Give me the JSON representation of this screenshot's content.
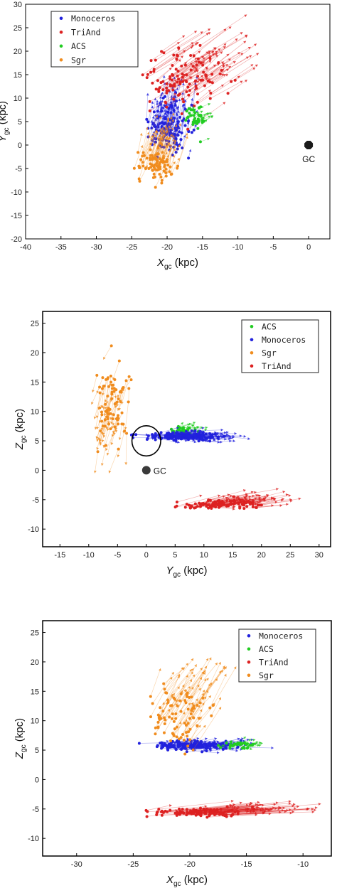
{
  "chart_data": [
    {
      "type": "scatter",
      "xlabel": {
        "main": "X",
        "sub": "gc",
        "unit": " (kpc)"
      },
      "ylabel": {
        "main": "Y",
        "sub": "gc",
        "unit": " (kpc)"
      },
      "xlim": [
        -40,
        3
      ],
      "ylim": [
        -20,
        30
      ],
      "xticks": [
        -40,
        -35,
        -30,
        -25,
        -20,
        -15,
        -10,
        -5,
        0
      ],
      "yticks": [
        -20,
        -15,
        -10,
        -5,
        0,
        5,
        10,
        15,
        20,
        25,
        30
      ],
      "legend_position": "top-left",
      "marker": {
        "label": "GC",
        "x": 0,
        "y": 0
      },
      "series": [
        {
          "name": "Monoceros",
          "color": "#2222dd",
          "center": [
            -19.5,
            3.5
          ],
          "spread": [
            2.5,
            5
          ],
          "count": 140,
          "vector": [
            0.5,
            5
          ],
          "seed": 11
        },
        {
          "name": "TriAnd",
          "color": "#dd2222",
          "center": [
            -18,
            14
          ],
          "spread": [
            4.5,
            5.5
          ],
          "count": 110,
          "vector": [
            5,
            5
          ],
          "seed": 12
        },
        {
          "name": "ACS",
          "color": "#22cc22",
          "center": [
            -16,
            5
          ],
          "spread": [
            1.3,
            3
          ],
          "count": 35,
          "vector": [
            1,
            1
          ],
          "seed": 13
        },
        {
          "name": "Sgr",
          "color": "#f08c1e",
          "center": [
            -21.5,
            -4
          ],
          "spread": [
            2.5,
            3
          ],
          "count": 85,
          "vector": [
            1.5,
            7
          ],
          "seed": 14
        }
      ]
    },
    {
      "type": "scatter",
      "xlabel": {
        "main": "Y",
        "sub": "gc",
        "unit": " (kpc)"
      },
      "ylabel": {
        "main": "Z",
        "sub": "gc",
        "unit": " (kpc)"
      },
      "xlim": [
        -18,
        32
      ],
      "ylim": [
        -13,
        27
      ],
      "xticks": [
        -15,
        -10,
        -5,
        0,
        5,
        10,
        15,
        20,
        25,
        30
      ],
      "yticks": [
        -10,
        -5,
        0,
        5,
        10,
        15,
        20,
        25
      ],
      "legend_position": "top-right",
      "marker": {
        "label": "GC",
        "x": 0,
        "y": 0
      },
      "circle": {
        "x": 0,
        "y": 5,
        "r": 2.5
      },
      "series": [
        {
          "name": "ACS",
          "color": "#22cc22",
          "center": [
            6,
            6.8
          ],
          "spread": [
            2.5,
            0.8
          ],
          "count": 30,
          "vector": [
            2,
            0.5
          ],
          "seed": 21
        },
        {
          "name": "Monoceros",
          "color": "#2222dd",
          "center": [
            6,
            5.8
          ],
          "spread": [
            5.5,
            0.6
          ],
          "count": 150,
          "vector": [
            4,
            0
          ],
          "seed": 22
        },
        {
          "name": "Sgr",
          "color": "#f08c1e",
          "center": [
            -6,
            11
          ],
          "spread": [
            2.5,
            6
          ],
          "count": 80,
          "vector": [
            -1,
            -4
          ],
          "seed": 23
        },
        {
          "name": "TriAnd",
          "color": "#dd2222",
          "center": [
            13,
            -5.8
          ],
          "spread": [
            6,
            0.7
          ],
          "count": 110,
          "vector": [
            6,
            1
          ],
          "seed": 24
        }
      ]
    },
    {
      "type": "scatter",
      "xlabel": {
        "main": "X",
        "sub": "gc",
        "unit": " (kpc)"
      },
      "ylabel": {
        "main": "Z",
        "sub": "gc",
        "unit": " (kpc)"
      },
      "xlim": [
        -33,
        -7.5
      ],
      "ylim": [
        -13,
        27
      ],
      "xticks": [
        -30,
        -25,
        -20,
        -15,
        -10
      ],
      "yticks": [
        -10,
        -5,
        0,
        5,
        10,
        15,
        20,
        25
      ],
      "legend_position": "top-right",
      "series": [
        {
          "name": "Monoceros",
          "color": "#2222dd",
          "center": [
            -20,
            5.8
          ],
          "spread": [
            2.8,
            0.7
          ],
          "count": 150,
          "vector": [
            2,
            0.2
          ],
          "seed": 31
        },
        {
          "name": "ACS",
          "color": "#22cc22",
          "center": [
            -15.5,
            5.8
          ],
          "spread": [
            1.3,
            0.6
          ],
          "count": 30,
          "vector": [
            1,
            0.3
          ],
          "seed": 32
        },
        {
          "name": "TriAnd",
          "color": "#dd2222",
          "center": [
            -19,
            -5.6
          ],
          "spread": [
            3.5,
            0.7
          ],
          "count": 110,
          "vector": [
            6,
            0.8
          ],
          "seed": 33
        },
        {
          "name": "Sgr",
          "color": "#f08c1e",
          "center": [
            -21,
            11
          ],
          "spread": [
            2.2,
            5
          ],
          "count": 85,
          "vector": [
            2,
            6
          ],
          "seed": 34
        }
      ]
    }
  ]
}
